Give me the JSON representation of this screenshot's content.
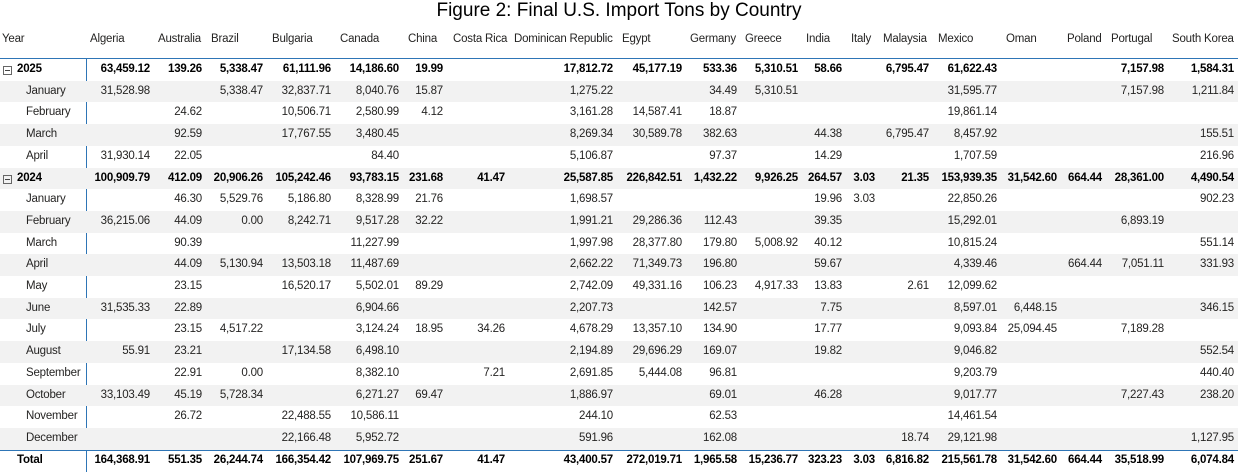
{
  "title": "Figure 2: Final U.S. Import Tons by Country",
  "columns": [
    "Year",
    "Algeria",
    "Australia",
    "Brazil",
    "Bulgaria",
    "Canada",
    "China",
    "Costa Rica",
    "Dominican Republic",
    "Egypt",
    "Germany",
    "Greece",
    "India",
    "Italy",
    "Malaysia",
    "Mexico",
    "Oman",
    "Poland",
    "Portugal",
    "South Korea"
  ],
  "groups": [
    {
      "label": "2025",
      "values": [
        "63,459.12",
        "139.26",
        "5,338.47",
        "61,111.96",
        "14,186.60",
        "19.99",
        null,
        "17,812.72",
        "45,177.19",
        "533.36",
        "5,310.51",
        "58.66",
        null,
        "6,795.47",
        "61,622.43",
        null,
        null,
        "7,157.98",
        "1,584.31"
      ],
      "months": [
        {
          "label": "January",
          "values": [
            "31,528.98",
            null,
            "5,338.47",
            "32,837.71",
            "8,040.76",
            "15.87",
            null,
            "1,275.22",
            null,
            "34.49",
            "5,310.51",
            null,
            null,
            null,
            "31,595.77",
            null,
            null,
            "7,157.98",
            "1,211.84"
          ]
        },
        {
          "label": "February",
          "values": [
            null,
            "24.62",
            null,
            "10,506.71",
            "2,580.99",
            "4.12",
            null,
            "3,161.28",
            "14,587.41",
            "18.87",
            null,
            null,
            null,
            null,
            "19,861.14",
            null,
            null,
            null,
            null
          ]
        },
        {
          "label": "March",
          "values": [
            null,
            "92.59",
            null,
            "17,767.55",
            "3,480.45",
            null,
            null,
            "8,269.34",
            "30,589.78",
            "382.63",
            null,
            "44.38",
            null,
            "6,795.47",
            "8,457.92",
            null,
            null,
            null,
            "155.51"
          ]
        },
        {
          "label": "April",
          "values": [
            "31,930.14",
            "22.05",
            null,
            null,
            "84.40",
            null,
            null,
            "5,106.87",
            null,
            "97.37",
            null,
            "14.29",
            null,
            null,
            "1,707.59",
            null,
            null,
            null,
            "216.96"
          ]
        }
      ]
    },
    {
      "label": "2024",
      "values": [
        "100,909.79",
        "412.09",
        "20,906.26",
        "105,242.46",
        "93,783.15",
        "231.68",
        "41.47",
        "25,587.85",
        "226,842.51",
        "1,432.22",
        "9,926.25",
        "264.57",
        "3.03",
        "21.35",
        "153,939.35",
        "31,542.60",
        "664.44",
        "28,361.00",
        "4,490.54"
      ],
      "months": [
        {
          "label": "January",
          "values": [
            null,
            "46.30",
            "5,529.76",
            "5,186.80",
            "8,328.99",
            "21.76",
            null,
            "1,698.57",
            null,
            null,
            null,
            "19.96",
            "3.03",
            null,
            "22,850.26",
            null,
            null,
            null,
            "902.23"
          ]
        },
        {
          "label": "February",
          "values": [
            "36,215.06",
            "44.09",
            "0.00",
            "8,242.71",
            "9,517.28",
            "32.22",
            null,
            "1,991.21",
            "29,286.36",
            "112.43",
            null,
            "39.35",
            null,
            null,
            "15,292.01",
            null,
            null,
            "6,893.19",
            null
          ]
        },
        {
          "label": "March",
          "values": [
            null,
            "90.39",
            null,
            null,
            "11,227.99",
            null,
            null,
            "1,997.98",
            "28,377.80",
            "179.80",
            "5,008.92",
            "40.12",
            null,
            null,
            "10,815.24",
            null,
            null,
            null,
            "551.14"
          ]
        },
        {
          "label": "April",
          "values": [
            null,
            "44.09",
            "5,130.94",
            "13,503.18",
            "11,487.69",
            null,
            null,
            "2,662.22",
            "71,349.73",
            "196.80",
            null,
            "59.67",
            null,
            null,
            "4,339.46",
            null,
            "664.44",
            "7,051.11",
            "331.93"
          ]
        },
        {
          "label": "May",
          "values": [
            null,
            "23.15",
            null,
            "16,520.17",
            "5,502.01",
            "89.29",
            null,
            "2,742.09",
            "49,331.16",
            "106.23",
            "4,917.33",
            "13.83",
            null,
            "2.61",
            "12,099.62",
            null,
            null,
            null,
            null
          ]
        },
        {
          "label": "June",
          "values": [
            "31,535.33",
            "22.89",
            null,
            null,
            "6,904.66",
            null,
            null,
            "2,207.73",
            null,
            "142.57",
            null,
            "7.75",
            null,
            null,
            "8,597.01",
            "6,448.15",
            null,
            null,
            "346.15"
          ]
        },
        {
          "label": "July",
          "values": [
            null,
            "23.15",
            "4,517.22",
            null,
            "3,124.24",
            "18.95",
            "34.26",
            "4,678.29",
            "13,357.10",
            "134.90",
            null,
            "17.77",
            null,
            null,
            "9,093.84",
            "25,094.45",
            null,
            "7,189.28",
            null
          ]
        },
        {
          "label": "August",
          "values": [
            "55.91",
            "23.21",
            null,
            "17,134.58",
            "6,498.10",
            null,
            null,
            "2,194.89",
            "29,696.29",
            "169.07",
            null,
            "19.82",
            null,
            null,
            "9,046.82",
            null,
            null,
            null,
            "552.54"
          ]
        },
        {
          "label": "September",
          "values": [
            null,
            "22.91",
            "0.00",
            null,
            "8,382.10",
            null,
            "7.21",
            "2,691.85",
            "5,444.08",
            "96.81",
            null,
            null,
            null,
            null,
            "9,203.79",
            null,
            null,
            null,
            "440.40"
          ]
        },
        {
          "label": "October",
          "values": [
            "33,103.49",
            "45.19",
            "5,728.34",
            null,
            "6,271.27",
            "69.47",
            null,
            "1,886.97",
            null,
            "69.01",
            null,
            "46.28",
            null,
            null,
            "9,017.77",
            null,
            null,
            "7,227.43",
            "238.20"
          ]
        },
        {
          "label": "November",
          "values": [
            null,
            "26.72",
            null,
            "22,488.55",
            "10,586.11",
            null,
            null,
            "244.10",
            null,
            "62.53",
            null,
            null,
            null,
            null,
            "14,461.54",
            null,
            null,
            null,
            null
          ]
        },
        {
          "label": "December",
          "values": [
            null,
            null,
            null,
            "22,166.48",
            "5,952.72",
            null,
            null,
            "591.96",
            null,
            "162.08",
            null,
            null,
            null,
            "18.74",
            "29,121.98",
            null,
            null,
            null,
            "1,127.95"
          ]
        }
      ]
    }
  ],
  "total": {
    "label": "Total",
    "values": [
      "164,368.91",
      "551.35",
      "26,244.74",
      "166,354.42",
      "107,969.75",
      "251.67",
      "41.47",
      "43,400.57",
      "272,019.71",
      "1,965.58",
      "15,236.77",
      "323.23",
      "3.03",
      "6,816.82",
      "215,561.78",
      "31,542.60",
      "664.44",
      "35,518.99",
      "6,074.84"
    ]
  }
}
